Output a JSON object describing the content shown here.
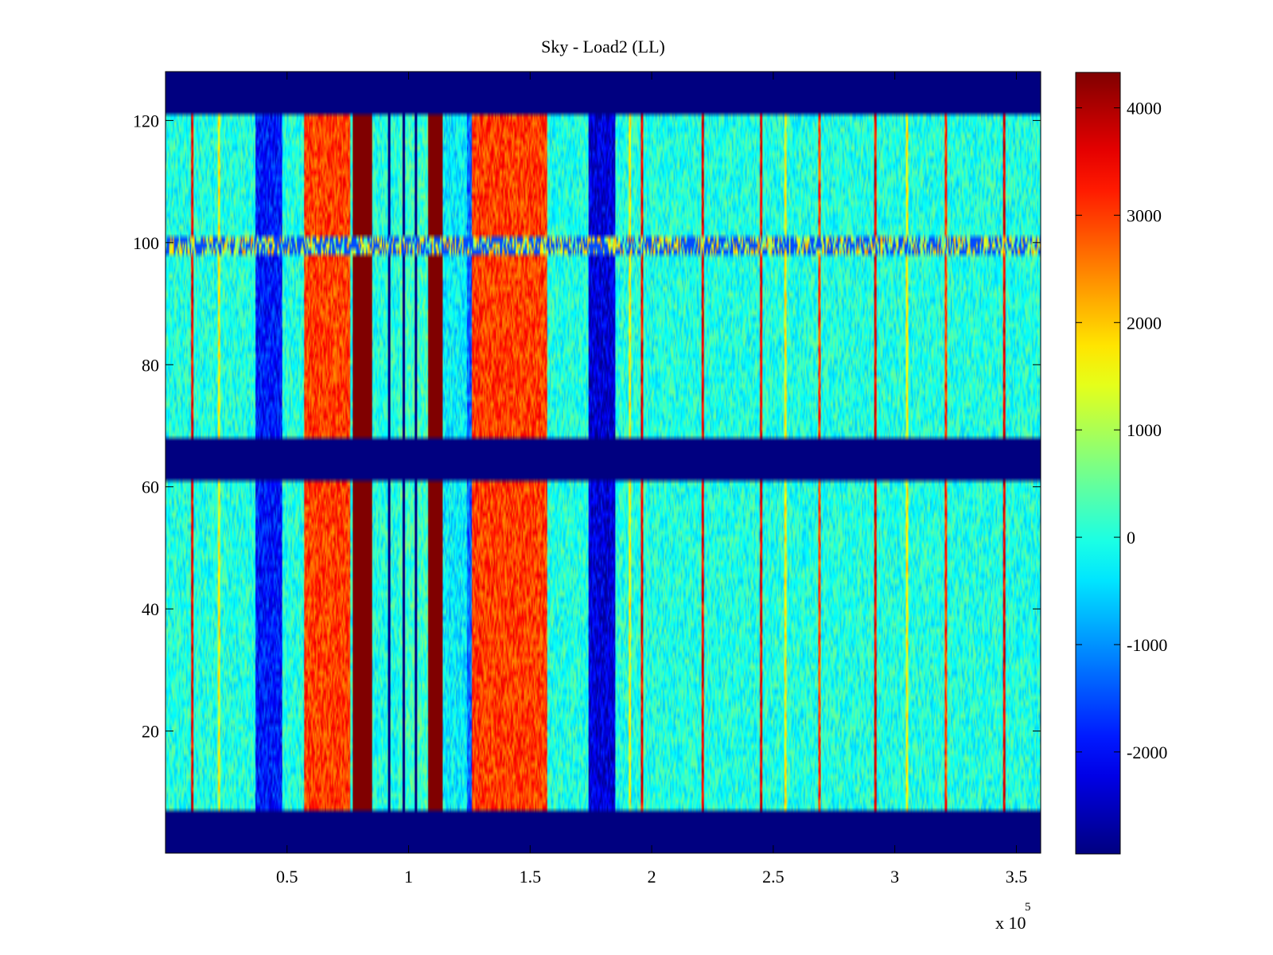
{
  "chart_data": {
    "type": "heatmap",
    "title": "Sky - Load2 (LL)",
    "xlabel": "",
    "ylabel": "",
    "x_exponent_label": "x 10",
    "x_exponent": "5",
    "xlim": [
      0,
      3.6
    ],
    "ylim": [
      0,
      128
    ],
    "x_ticks": [
      0.5,
      1,
      1.5,
      2,
      2.5,
      3,
      3.5
    ],
    "x_tick_labels": [
      "0.5",
      "1",
      "1.5",
      "2",
      "2.5",
      "3",
      "3.5"
    ],
    "y_ticks": [
      20,
      40,
      60,
      80,
      100,
      120
    ],
    "y_tick_labels": [
      "20",
      "40",
      "60",
      "80",
      "100",
      "120"
    ],
    "colormap": "jet",
    "clim": [
      -2950,
      4330
    ],
    "colorbar_ticks": [
      -2000,
      -1000,
      0,
      1000,
      2000,
      3000,
      4000
    ],
    "colorbar_tick_labels": [
      "-2000",
      "-1000",
      "0",
      "1000",
      "2000",
      "3000",
      "4000"
    ],
    "background_value": 0,
    "masked_rows": [
      {
        "from": 0,
        "to": 7,
        "value": -2950
      },
      {
        "from": 61,
        "to": 68,
        "value": -2950
      },
      {
        "from": 121,
        "to": 128,
        "value": -2950
      }
    ],
    "bands": [
      {
        "x_from": 0.37,
        "x_to": 0.48,
        "value": -1900
      },
      {
        "x_from": 0.57,
        "x_to": 0.76,
        "value": 3000
      },
      {
        "x_from": 0.76,
        "x_to": 0.77,
        "value": 0
      },
      {
        "x_from": 0.77,
        "x_to": 0.85,
        "value": 4330
      },
      {
        "x_from": 0.85,
        "x_to": 0.96,
        "value": 0
      },
      {
        "x_from": 0.96,
        "x_to": 1.08,
        "value": 200
      },
      {
        "x_from": 1.08,
        "x_to": 1.14,
        "value": 4330
      },
      {
        "x_from": 1.14,
        "x_to": 1.24,
        "value": -300
      },
      {
        "x_from": 1.24,
        "x_to": 1.26,
        "value": -1300
      },
      {
        "x_from": 1.26,
        "x_to": 1.57,
        "value": 3000
      },
      {
        "x_from": 1.57,
        "x_to": 1.74,
        "value": 0
      },
      {
        "x_from": 1.74,
        "x_to": 1.85,
        "value": -2300
      },
      {
        "x_from": 1.85,
        "x_to": 3.6,
        "value": 0
      }
    ],
    "thin_lines": [
      {
        "x": 0.11,
        "value": 3500
      },
      {
        "x": 0.22,
        "value": 1500
      },
      {
        "x": 0.92,
        "value": -2950
      },
      {
        "x": 0.98,
        "value": -2950
      },
      {
        "x": 1.03,
        "value": -2950
      },
      {
        "x": 1.96,
        "value": 3500
      },
      {
        "x": 2.21,
        "value": 3500
      },
      {
        "x": 2.45,
        "value": 3500
      },
      {
        "x": 2.69,
        "value": 3000
      },
      {
        "x": 2.92,
        "value": 3500
      },
      {
        "x": 3.21,
        "value": 3000
      },
      {
        "x": 3.45,
        "value": 3500
      },
      {
        "x": 1.91,
        "value": 1500
      },
      {
        "x": 2.55,
        "value": 1500
      },
      {
        "x": 3.05,
        "value": 1500
      }
    ],
    "stripe_row": {
      "y_from": 98,
      "y_to": 101,
      "value": -1500
    },
    "noise_amplitude": 600,
    "grid": false
  }
}
